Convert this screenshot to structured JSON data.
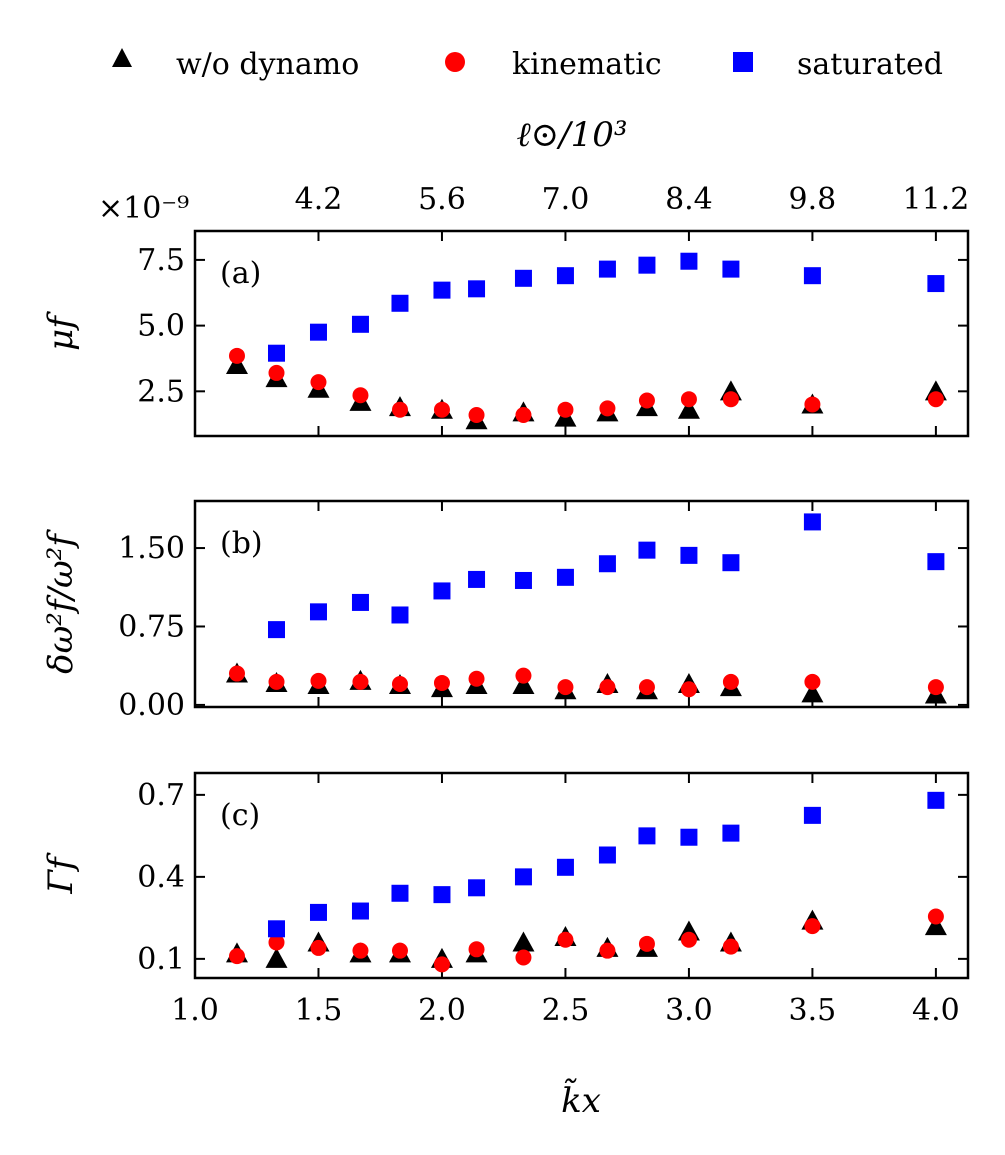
{
  "legend": {
    "items": [
      {
        "label": "w/o dynamo",
        "marker": "triangle",
        "color": "#000000"
      },
      {
        "label": "kinematic",
        "marker": "circle",
        "color": "#ff0000"
      },
      {
        "label": "saturated",
        "marker": "square",
        "color": "#0000ff"
      }
    ]
  },
  "top_axis": {
    "label": "ℓ⊙/10³",
    "ticks": [
      "4.2",
      "5.6",
      "7.0",
      "8.4",
      "9.8",
      "11.2"
    ],
    "tick_positions": [
      1.5,
      2.0,
      2.5,
      3.0,
      3.5,
      4.0
    ]
  },
  "bottom_axis": {
    "label": "k̃x",
    "ticks": [
      "1.0",
      "1.5",
      "2.0",
      "2.5",
      "3.0",
      "3.5",
      "4.0"
    ]
  },
  "chart_data": [
    {
      "type": "scatter",
      "panel": "(a)",
      "ylabel": "μf",
      "multiplier": "×10⁻⁹",
      "xlim": [
        1.0,
        4.13
      ],
      "ylim": [
        0.8,
        8.6
      ],
      "yticks": [
        2.5,
        5.0,
        7.5
      ],
      "ytick_labels": [
        "2.5",
        "5.0",
        "7.5"
      ],
      "series": [
        {
          "name": "w/o dynamo",
          "x": [
            1.17,
            1.33,
            1.5,
            1.67,
            1.83,
            2.0,
            2.14,
            2.33,
            2.5,
            2.67,
            2.83,
            3.0,
            3.17,
            3.5,
            4.0
          ],
          "y": [
            3.5,
            3.0,
            2.6,
            2.1,
            1.9,
            1.8,
            1.4,
            1.7,
            1.5,
            1.7,
            1.9,
            1.8,
            2.5,
            2.0,
            2.5
          ]
        },
        {
          "name": "kinematic",
          "x": [
            1.17,
            1.33,
            1.5,
            1.67,
            1.83,
            2.0,
            2.14,
            2.33,
            2.5,
            2.67,
            2.83,
            3.0,
            3.17,
            3.5,
            4.0
          ],
          "y": [
            3.85,
            3.2,
            2.85,
            2.35,
            1.8,
            1.8,
            1.6,
            1.6,
            1.8,
            1.85,
            2.15,
            2.2,
            2.2,
            2.0,
            2.2
          ]
        },
        {
          "name": "saturated",
          "x": [
            1.33,
            1.5,
            1.67,
            1.83,
            2.0,
            2.14,
            2.33,
            2.5,
            2.67,
            2.83,
            3.0,
            3.17,
            3.5,
            4.0
          ],
          "y": [
            3.95,
            4.75,
            5.05,
            5.85,
            6.35,
            6.4,
            6.8,
            6.9,
            7.15,
            7.3,
            7.45,
            7.15,
            6.9,
            6.6
          ]
        }
      ]
    },
    {
      "type": "scatter",
      "panel": "(b)",
      "ylabel": "δω²f/ω²f",
      "xlim": [
        1.0,
        4.13
      ],
      "ylim": [
        -0.02,
        1.95
      ],
      "yticks": [
        0.0,
        0.75,
        1.5
      ],
      "ytick_labels": [
        "0.00",
        "0.75",
        "1.50"
      ],
      "series": [
        {
          "name": "w/o dynamo",
          "x": [
            1.17,
            1.33,
            1.5,
            1.67,
            1.83,
            2.0,
            2.14,
            2.33,
            2.5,
            2.67,
            2.83,
            3.0,
            3.17,
            3.5,
            4.0
          ],
          "y": [
            0.3,
            0.21,
            0.19,
            0.23,
            0.19,
            0.16,
            0.19,
            0.19,
            0.14,
            0.2,
            0.14,
            0.2,
            0.17,
            0.11,
            0.1
          ]
        },
        {
          "name": "kinematic",
          "x": [
            1.17,
            1.33,
            1.5,
            1.67,
            1.83,
            2.0,
            2.14,
            2.33,
            2.5,
            2.67,
            2.83,
            3.0,
            3.17,
            3.5,
            4.0
          ],
          "y": [
            0.3,
            0.22,
            0.23,
            0.22,
            0.2,
            0.21,
            0.25,
            0.28,
            0.17,
            0.17,
            0.17,
            0.15,
            0.22,
            0.22,
            0.17
          ]
        },
        {
          "name": "saturated",
          "x": [
            1.33,
            1.5,
            1.67,
            1.83,
            2.0,
            2.14,
            2.33,
            2.5,
            2.67,
            2.83,
            3.0,
            3.17,
            3.5,
            4.0
          ],
          "y": [
            0.72,
            0.89,
            0.98,
            0.86,
            1.09,
            1.2,
            1.19,
            1.22,
            1.35,
            1.48,
            1.43,
            1.36,
            1.75,
            1.37
          ]
        }
      ]
    },
    {
      "type": "scatter",
      "panel": "(c)",
      "ylabel": "Γf",
      "xlim": [
        1.0,
        4.13
      ],
      "ylim": [
        0.03,
        0.78
      ],
      "yticks": [
        0.1,
        0.4,
        0.7
      ],
      "ytick_labels": [
        "0.1",
        "0.4",
        "0.7"
      ],
      "series": [
        {
          "name": "w/o dynamo",
          "x": [
            1.17,
            1.33,
            1.5,
            1.67,
            1.83,
            2.0,
            2.14,
            2.33,
            2.5,
            2.67,
            2.83,
            3.0,
            3.17,
            3.5,
            4.0
          ],
          "y": [
            0.12,
            0.1,
            0.16,
            0.12,
            0.12,
            0.1,
            0.12,
            0.16,
            0.18,
            0.14,
            0.14,
            0.2,
            0.16,
            0.24,
            0.22
          ]
        },
        {
          "name": "kinematic",
          "x": [
            1.17,
            1.33,
            1.5,
            1.67,
            1.83,
            2.0,
            2.14,
            2.33,
            2.5,
            2.67,
            2.83,
            3.0,
            3.17,
            3.5,
            4.0
          ],
          "y": [
            0.11,
            0.16,
            0.14,
            0.13,
            0.13,
            0.08,
            0.135,
            0.105,
            0.17,
            0.13,
            0.155,
            0.17,
            0.145,
            0.22,
            0.255
          ]
        },
        {
          "name": "saturated",
          "x": [
            1.33,
            1.5,
            1.67,
            1.83,
            2.0,
            2.14,
            2.33,
            2.5,
            2.67,
            2.83,
            3.0,
            3.17,
            3.5,
            4.0
          ],
          "y": [
            0.21,
            0.27,
            0.275,
            0.34,
            0.335,
            0.36,
            0.4,
            0.435,
            0.48,
            0.55,
            0.545,
            0.56,
            0.625,
            0.68
          ]
        }
      ]
    }
  ]
}
